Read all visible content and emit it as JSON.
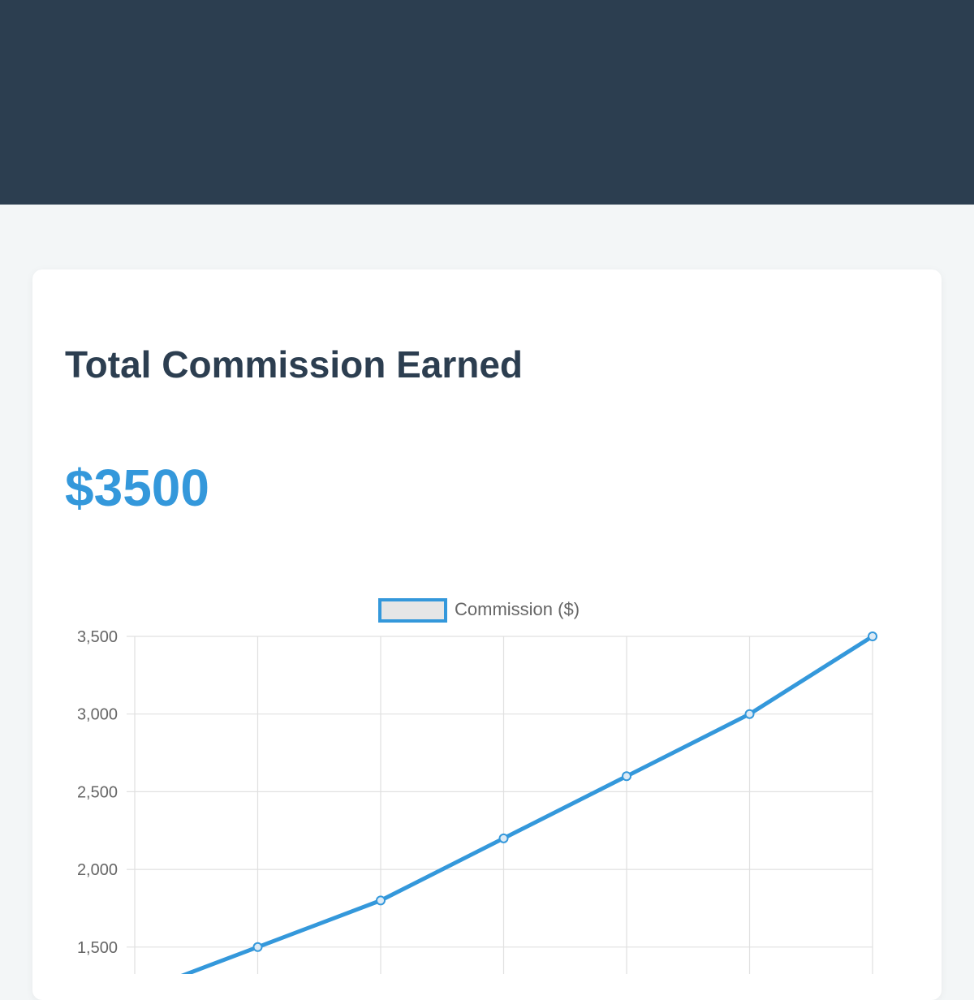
{
  "card": {
    "title": "Total Commission Earned",
    "total": "$3500"
  },
  "colors": {
    "header_bg": "#2c3e50",
    "accent": "#3498db",
    "grid": "#e0e0e0",
    "legend_fill": "#e6e6e6"
  },
  "chart_data": {
    "type": "line",
    "legend_position": "top-center",
    "grid": true,
    "series": [
      {
        "name": "Commission ($)",
        "color": "#3498db",
        "values": [
          1200,
          1500,
          1800,
          2200,
          2600,
          3000,
          3500
        ]
      }
    ],
    "ylim": [
      1000,
      3500
    ],
    "yticks": [
      1500,
      2000,
      2500,
      3000,
      3500
    ],
    "ytick_labels": [
      "1,500",
      "2,000",
      "2,500",
      "3,000",
      "3,500"
    ]
  }
}
